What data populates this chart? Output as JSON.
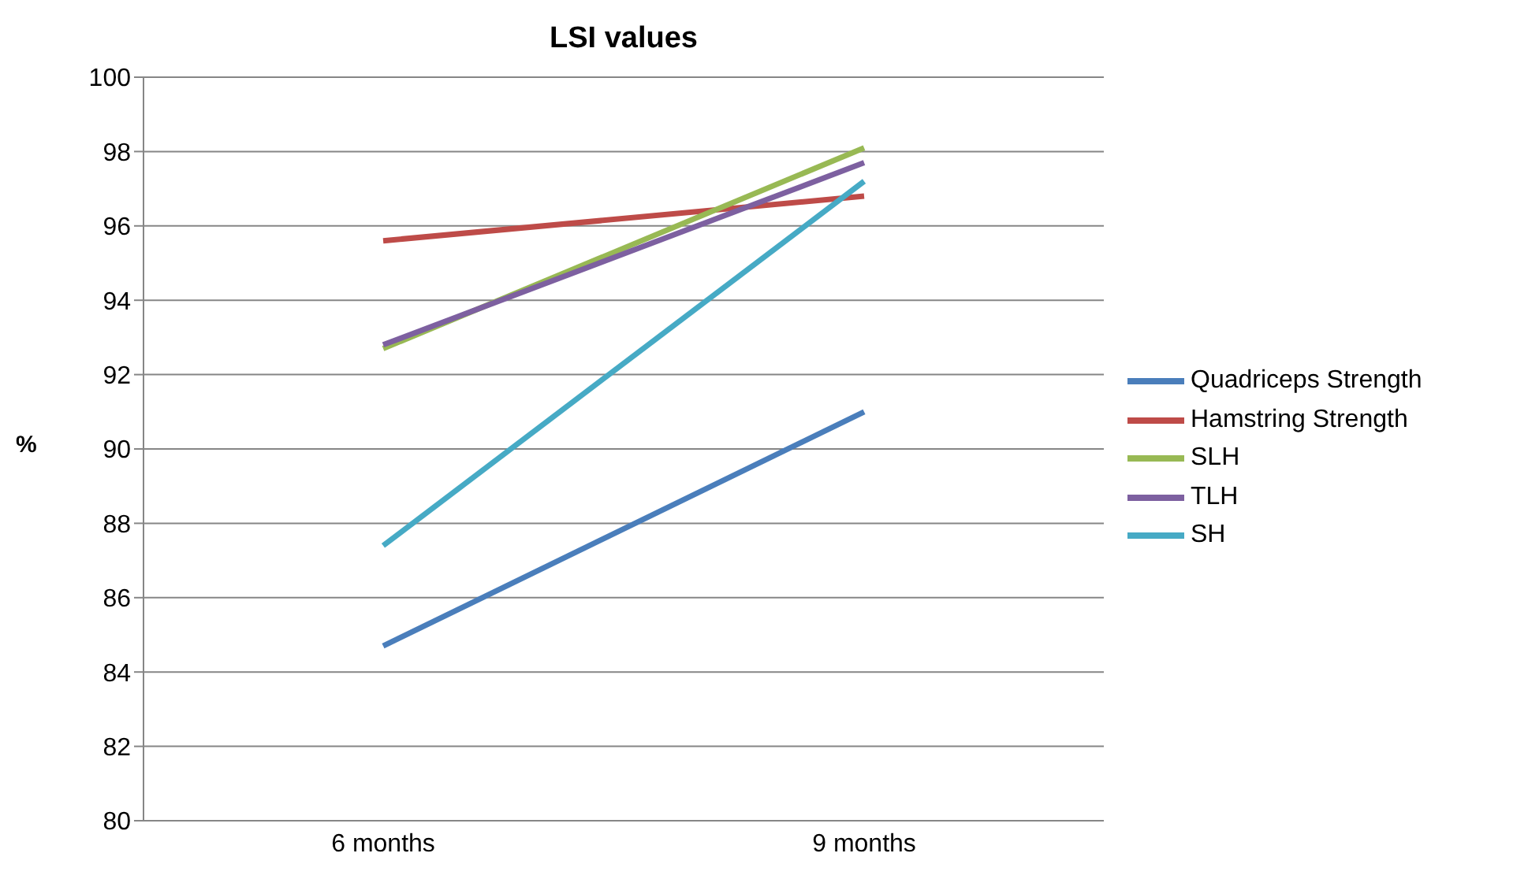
{
  "chart_data": {
    "type": "line",
    "title": "LSI values",
    "ylabel": "%",
    "categories": [
      "6 months",
      "9 months"
    ],
    "series": [
      {
        "name": "Quadriceps Strength",
        "color": "#4a7ebb",
        "values": [
          84.7,
          91.0
        ]
      },
      {
        "name": "Hamstring Strength",
        "color": "#be4b48",
        "values": [
          95.6,
          96.8
        ]
      },
      {
        "name": "SLH",
        "color": "#98b954",
        "values": [
          92.7,
          98.1
        ]
      },
      {
        "name": "TLH",
        "color": "#7d60a0",
        "values": [
          92.8,
          97.7
        ]
      },
      {
        "name": "SH",
        "color": "#46aac5",
        "values": [
          87.4,
          97.2
        ]
      }
    ],
    "ylim": [
      80,
      100
    ],
    "yticks": [
      80,
      82,
      84,
      86,
      88,
      90,
      92,
      94,
      96,
      98,
      100
    ],
    "grid": "y",
    "legend": "right",
    "marker": "none",
    "line_style": "solid"
  }
}
